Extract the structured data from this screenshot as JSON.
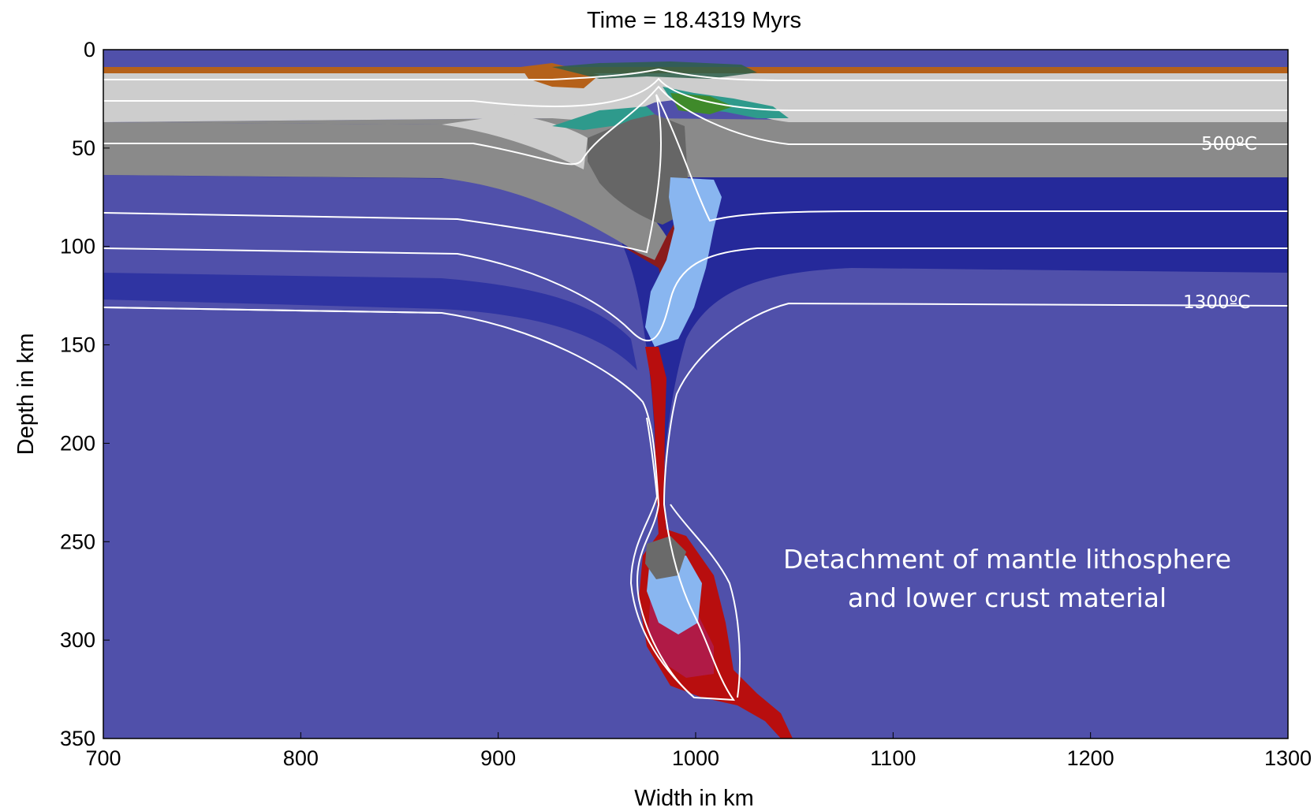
{
  "figure": {
    "title": "Time = 18.4319 Myrs",
    "xlabel": "Width in km",
    "ylabel": "Depth in km",
    "annotation_line1": "Detachment of mantle lithosphere",
    "annotation_line2": "and lower crust material"
  },
  "isotherm_labels": {
    "t500": "500ºC",
    "t1300": "1300ºC"
  },
  "chart_data": {
    "type": "heatmap",
    "title": "Time = 18.4319 Myrs",
    "xlabel": "Width in km",
    "ylabel": "Depth in km",
    "xlim": [
      700,
      1300
    ],
    "ylim": [
      350,
      0
    ],
    "x_ticks": [
      700,
      800,
      900,
      1000,
      1100,
      1200,
      1300
    ],
    "y_ticks": [
      0,
      50,
      100,
      150,
      200,
      250,
      300,
      350
    ],
    "isotherm_labels": [
      "500ºC",
      "1300ºC"
    ],
    "colors": {
      "sediment": "#b5611a",
      "upper_crust": "#cdcdcd",
      "lower_crust": "#8a8a8a",
      "lower_crust_dark": "#666666",
      "lithospheric_mantle": "#25299a",
      "asthenosphere": "#5050aa",
      "weak_mantle": "#89b6f0",
      "detached_material": "#b01a46",
      "detached_rim": "#b80e0e",
      "isotherm": "#ffffff"
    }
  }
}
